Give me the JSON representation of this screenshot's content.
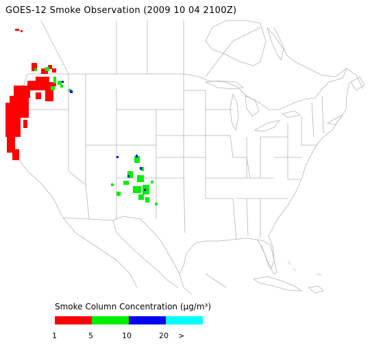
{
  "title": "GOES-12 Smoke Observation (2009 10 04  2100Z)",
  "legend": {
    "title": "Smoke Column Concentration (μg/m³)",
    "segments": [
      {
        "color": "#ff0000"
      },
      {
        "color": "#00ee00"
      },
      {
        "color": "#0000ee"
      },
      {
        "color": "#00ffff"
      }
    ],
    "ticks": [
      "1",
      "5",
      "10",
      "20",
      ">"
    ]
  },
  "colors": {
    "boundary": "#b4b4b4",
    "land_bg": "#ffffff"
  }
}
